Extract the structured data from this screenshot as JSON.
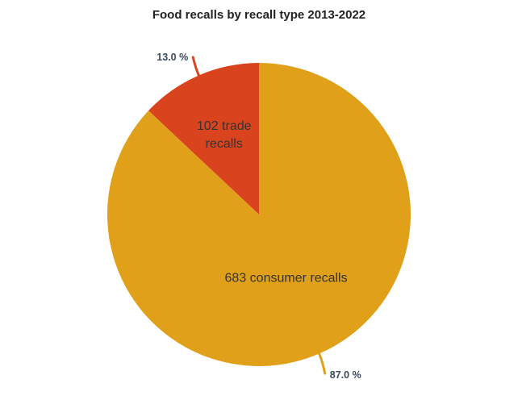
{
  "chart_data": {
    "type": "pie",
    "title": "Food recalls by recall type 2013-2022",
    "slices": [
      {
        "label_lines": [
          "102 trade",
          "recalls"
        ],
        "value": 102,
        "percent_label": "13.0 %",
        "color": "#d9441f"
      },
      {
        "label_lines": [
          "683 consumer recalls"
        ],
        "value": 683,
        "percent_label": "87.0 %",
        "color": "#e0a019"
      }
    ],
    "start_angle": "12 o'clock",
    "direction": "counter-clockwise",
    "legend": "none"
  }
}
